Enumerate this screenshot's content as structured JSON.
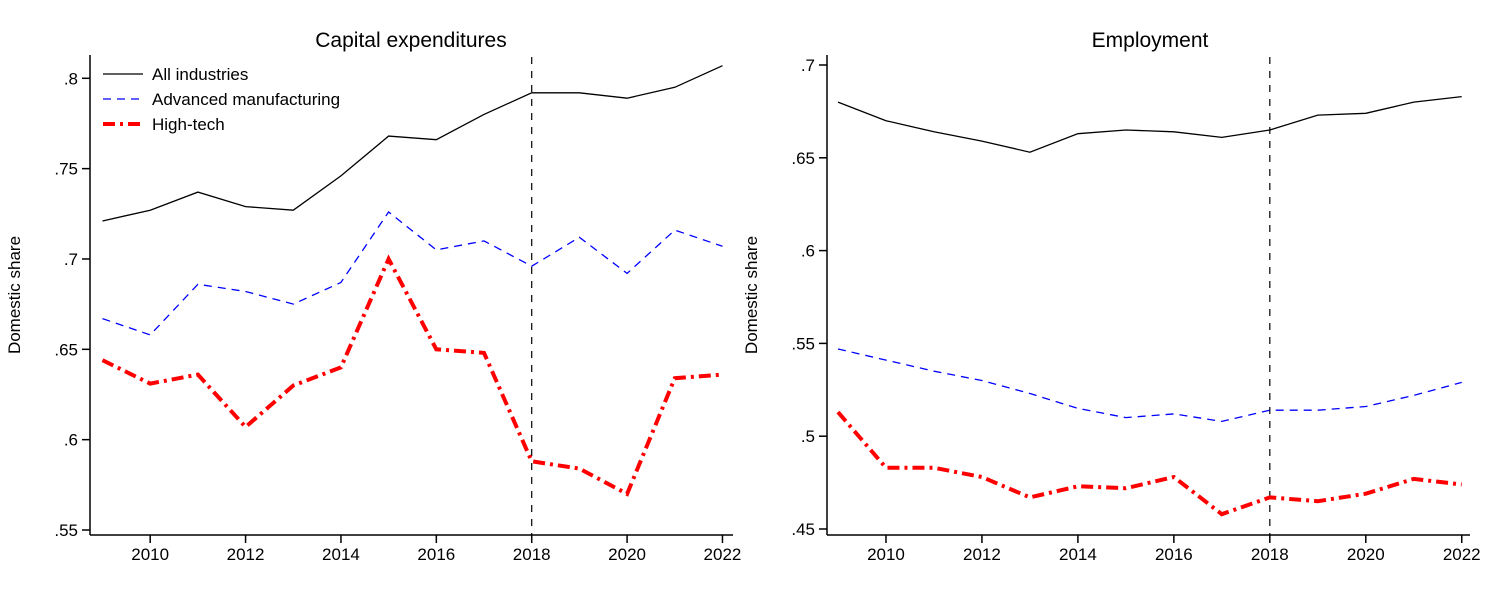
{
  "page": {
    "background": "#ffffff"
  },
  "chart_data": [
    {
      "type": "line",
      "title": "Capital expenditures",
      "ylabel": "Domestic share",
      "x": [
        2009,
        2010,
        2011,
        2012,
        2013,
        2014,
        2015,
        2016,
        2017,
        2018,
        2019,
        2020,
        2021,
        2022
      ],
      "xtick_values": [
        2010,
        2012,
        2014,
        2016,
        2018,
        2020,
        2022
      ],
      "xtick_labels": [
        "2010",
        "2012",
        "2014",
        "2016",
        "2018",
        "2020",
        "2022"
      ],
      "ytick_values": [
        0.55,
        0.6,
        0.65,
        0.7,
        0.75,
        0.8
      ],
      "ytick_labels": [
        ".55",
        ".6",
        ".65",
        ".7",
        ".75",
        ".8"
      ],
      "ylim": [
        0.55,
        0.8
      ],
      "grid": false,
      "legend_position": "top-left-inside",
      "reference_line_x": 2018,
      "series": [
        {
          "name": "All industries",
          "color": "#000000",
          "line_style": "solid",
          "values": [
            0.721,
            0.727,
            0.737,
            0.729,
            0.727,
            0.746,
            0.768,
            0.766,
            0.78,
            0.792,
            0.792,
            0.789,
            0.795,
            0.807
          ]
        },
        {
          "name": "Advanced manufacturing",
          "color": "#0000ff",
          "line_style": "dashed",
          "values": [
            0.667,
            0.658,
            0.686,
            0.682,
            0.675,
            0.687,
            0.726,
            0.705,
            0.71,
            0.696,
            0.712,
            0.692,
            0.716,
            0.707
          ]
        },
        {
          "name": "High-tech",
          "color": "#ff0000",
          "line_style": "dash-dot",
          "values": [
            0.644,
            0.631,
            0.636,
            0.607,
            0.63,
            0.64,
            0.7,
            0.65,
            0.648,
            0.588,
            0.584,
            0.57,
            0.634,
            0.636
          ]
        }
      ]
    },
    {
      "type": "line",
      "title": "Employment",
      "ylabel": "Domestic share",
      "x": [
        2009,
        2010,
        2011,
        2012,
        2013,
        2014,
        2015,
        2016,
        2017,
        2018,
        2019,
        2020,
        2021,
        2022
      ],
      "xtick_values": [
        2010,
        2012,
        2014,
        2016,
        2018,
        2020,
        2022
      ],
      "xtick_labels": [
        "2010",
        "2012",
        "2014",
        "2016",
        "2018",
        "2020",
        "2022"
      ],
      "ytick_values": [
        0.45,
        0.5,
        0.55,
        0.6,
        0.65,
        0.7
      ],
      "ytick_labels": [
        ".45",
        ".5",
        ".55",
        ".6",
        ".65",
        ".7"
      ],
      "ylim": [
        0.45,
        0.7
      ],
      "grid": false,
      "legend_position": "none",
      "reference_line_x": 2018,
      "series": [
        {
          "name": "All industries",
          "color": "#000000",
          "line_style": "solid",
          "values": [
            0.68,
            0.67,
            0.664,
            0.659,
            0.653,
            0.663,
            0.665,
            0.664,
            0.661,
            0.665,
            0.673,
            0.674,
            0.68,
            0.683
          ]
        },
        {
          "name": "Advanced manufacturing",
          "color": "#0000ff",
          "line_style": "dashed",
          "values": [
            0.547,
            0.541,
            0.535,
            0.53,
            0.523,
            0.515,
            0.51,
            0.512,
            0.508,
            0.514,
            0.514,
            0.516,
            0.522,
            0.529
          ]
        },
        {
          "name": "High-tech",
          "color": "#ff0000",
          "line_style": "dash-dot",
          "values": [
            0.513,
            0.483,
            0.483,
            0.478,
            0.467,
            0.473,
            0.472,
            0.478,
            0.458,
            0.467,
            0.465,
            0.469,
            0.477,
            0.474
          ]
        }
      ]
    }
  ]
}
